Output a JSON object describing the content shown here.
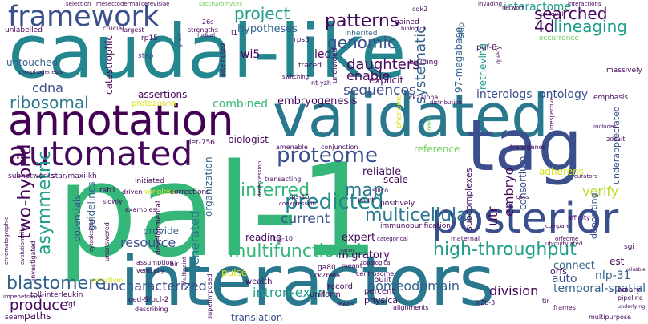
{
  "title": "word cloud",
  "palette": {
    "darkpurple": "#46085c",
    "indigo": "#3b4f8c",
    "blue": "#33638d",
    "teal": "#24868e",
    "teal2": "#1f9e89",
    "green": "#35b779",
    "lime": "#6ece58",
    "yellow": "#b5de2b",
    "gold": "#d8e219"
  },
  "words": [
    {
      "text": "caudal-like",
      "color": "#24868e"
    },
    {
      "text": "pal-1",
      "color": "#35b779"
    },
    {
      "text": "interactors",
      "color": "#2a788e"
    },
    {
      "text": "validated",
      "color": "#2a788e"
    },
    {
      "text": "tag",
      "color": "#3b4f8c"
    },
    {
      "text": "annotation",
      "color": "#440154"
    },
    {
      "text": "automated",
      "color": "#46085c"
    },
    {
      "text": "posterior",
      "color": "#3b4f8c"
    },
    {
      "text": "framework",
      "color": "#3b4f8c"
    },
    {
      "text": "predicted",
      "color": "#24868e"
    },
    {
      "text": "proteome",
      "color": "#3b4f8c"
    },
    {
      "text": "two-hybrid",
      "color": "#46085c"
    },
    {
      "text": "asymmetric",
      "color": "#1f9e89"
    },
    {
      "text": "high-throughput",
      "color": "#1f9e89"
    },
    {
      "text": "multifunctional",
      "color": "#35b779"
    },
    {
      "text": "multicellular",
      "color": "#2a788e"
    },
    {
      "text": "blastomere",
      "color": "#33638d"
    },
    {
      "text": "uncharacterized",
      "color": "#3b4f8c"
    },
    {
      "text": "inferred",
      "color": "#35b779"
    },
    {
      "text": "genomic",
      "color": "#3b4f8c"
    },
    {
      "text": "patterns",
      "color": "#46085c"
    },
    {
      "text": "daughters",
      "color": "#46085c"
    },
    {
      "text": "ribosomal",
      "color": "#2a788e"
    },
    {
      "text": "map",
      "color": "#2a788e"
    },
    {
      "text": "4d",
      "color": "#46085c"
    },
    {
      "text": "lineaging",
      "color": "#1f9e89"
    },
    {
      "text": "interactome",
      "color": "#1f9e89"
    },
    {
      "text": "searched",
      "color": "#46085c"
    },
    {
      "text": "project",
      "color": "#1f9e89"
    },
    {
      "text": "sequences",
      "color": "#3b4f8c"
    },
    {
      "text": "enable",
      "color": "#46085c"
    },
    {
      "text": "systematic",
      "color": "#33638d"
    },
    {
      "text": "produce",
      "color": "#46085c"
    },
    {
      "text": "resource",
      "color": "#3b4f8c"
    },
    {
      "text": "verify",
      "color": "#b5de2b"
    },
    {
      "text": "utr",
      "color": "#46085c"
    },
    {
      "text": "embryo",
      "color": "#46085c"
    },
    {
      "text": "current",
      "color": "#3b4f8c"
    },
    {
      "text": "generated",
      "color": "#2a788e"
    },
    {
      "text": "intron-exon",
      "color": "#1f9e89"
    },
    {
      "text": "homeodomain",
      "color": "#33638d"
    },
    {
      "text": "division",
      "color": "#46085c"
    },
    {
      "text": "temporal-spatial",
      "color": "#33638d"
    },
    {
      "text": "translation",
      "color": "#3b4f8c"
    },
    {
      "text": "interologs",
      "color": "#3b4f8c"
    },
    {
      "text": "ontology",
      "color": "#3b4f8c"
    },
    {
      "text": "combined",
      "color": "#35b779"
    },
    {
      "text": "embryogenesis",
      "color": "#46085c"
    },
    {
      "text": "cdna",
      "color": "#3b4f8c"
    },
    {
      "text": "hypotheses",
      "color": "#33638d"
    },
    {
      "text": "wi5",
      "color": "#46085c"
    },
    {
      "text": "led",
      "color": "#46085c"
    },
    {
      "text": "untouched",
      "color": "#33638d"
    },
    {
      "text": "catastrophic",
      "color": "#46085c"
    },
    {
      "text": "assertions",
      "color": "#46085c"
    },
    {
      "text": "potentials",
      "color": "#3b4f8c"
    },
    {
      "text": "guidelines",
      "color": "#33638d"
    },
    {
      "text": "organization",
      "color": "#33638d"
    },
    {
      "text": "reliable",
      "color": "#46085c"
    },
    {
      "text": "expert",
      "color": "#46085c"
    },
    {
      "text": "migratory",
      "color": "#46085c"
    },
    {
      "text": "explicit",
      "color": "#46085c"
    },
    {
      "text": "97-megabase",
      "color": "#33638d"
    },
    {
      "text": "retrieving",
      "color": "#1f9e89"
    },
    {
      "text": "consortium",
      "color": "#3b4f8c"
    },
    {
      "text": "depositing",
      "color": "#3b4f8c"
    },
    {
      "text": "underappreciated",
      "color": "#3b4f8c"
    },
    {
      "text": "subcomplexes",
      "color": "#46085c"
    },
    {
      "text": "adherens",
      "color": "#d8e219"
    },
    {
      "text": "auto",
      "color": "#3b4f8c"
    },
    {
      "text": "nlp-31",
      "color": "#33638d"
    },
    {
      "text": "connect",
      "color": "#33638d"
    },
    {
      "text": "orfs",
      "color": "#46085c"
    },
    {
      "text": "est",
      "color": "#46085c"
    },
    {
      "text": "pulse",
      "color": "#d8e219"
    },
    {
      "text": "biologist",
      "color": "#46085c"
    },
    {
      "text": "reading",
      "color": "#46085c"
    },
    {
      "text": "reference",
      "color": "#6ece58"
    },
    {
      "text": "scale",
      "color": "#46085c"
    },
    {
      "text": "provide",
      "color": "#33638d"
    },
    {
      "text": "paths",
      "color": "#46085c"
    },
    {
      "text": "uniform",
      "color": "#46085c"
    },
    {
      "text": "physical",
      "color": "#46085c"
    },
    {
      "text": "percent",
      "color": "#46085c"
    },
    {
      "text": "built",
      "color": "#46085c"
    },
    {
      "text": "record",
      "color": "#46085c"
    },
    {
      "text": "wealth",
      "color": "#46085c"
    },
    {
      "text": "selection",
      "color": "#46085c"
    },
    {
      "text": "mesectodermal",
      "color": "#46085c"
    },
    {
      "text": "cerevisiae",
      "color": "#46085c"
    },
    {
      "text": "invading",
      "color": "#46085c"
    },
    {
      "text": "network",
      "color": "#46085c"
    },
    {
      "text": "interactions",
      "color": "#46085c"
    },
    {
      "text": "saccharomyces",
      "color": "#6ece58"
    },
    {
      "text": "unlabelled",
      "color": "#46085c"
    },
    {
      "text": "crucial",
      "color": "#46085c"
    },
    {
      "text": "largest",
      "color": "#46085c"
    },
    {
      "text": "strengths",
      "color": "#46085c"
    },
    {
      "text": "rp15",
      "color": "#46085c"
    },
    {
      "text": "rps3",
      "color": "#46085c"
    },
    {
      "text": "l1",
      "color": "#46085c"
    },
    {
      "text": "grew",
      "color": "#33638d"
    },
    {
      "text": "gained",
      "color": "#46085c"
    },
    {
      "text": "biological",
      "color": "#46085c"
    },
    {
      "text": "inherited",
      "color": "#33638d"
    },
    {
      "text": "skip",
      "color": "#33638d"
    },
    {
      "text": "puf-8",
      "color": "#46085c"
    },
    {
      "text": "cdk2",
      "color": "#46085c"
    },
    {
      "text": "unequal",
      "color": "#46085c"
    },
    {
      "text": "occurrence",
      "color": "#6ece58"
    },
    {
      "text": "morphogenesis",
      "color": "#46085c"
    },
    {
      "text": "step",
      "color": "#3b4f8c"
    },
    {
      "text": "traced",
      "color": "#46085c"
    },
    {
      "text": "building",
      "color": "#46085c"
    },
    {
      "text": "switching",
      "color": "#46085c"
    },
    {
      "text": "query",
      "color": "#46085c"
    },
    {
      "text": "massively",
      "color": "#46085c"
    },
    {
      "text": "emphasis",
      "color": "#46085c"
    },
    {
      "text": "protozoans",
      "color": "#d8e219"
    },
    {
      "text": "let-756",
      "color": "#46085c"
    },
    {
      "text": "star/maxi-kh",
      "color": "#46085c"
    },
    {
      "text": "subnetworks",
      "color": "#46085c"
    },
    {
      "text": "initiated",
      "color": "#46085c"
    },
    {
      "text": "ck2alpha",
      "color": "#46085c"
    },
    {
      "text": "distribution",
      "color": "#46085c"
    },
    {
      "text": "phenome",
      "color": "#d8e219"
    },
    {
      "text": "trees",
      "color": "#6ece58"
    },
    {
      "text": "irrespective",
      "color": "#46085c"
    },
    {
      "text": "includes",
      "color": "#46085c"
    },
    {
      "text": "transgenes",
      "color": "#46085c"
    },
    {
      "text": "bait",
      "color": "#46085c"
    },
    {
      "text": "curators",
      "color": "#46085c"
    },
    {
      "text": "amenable",
      "color": "#46085c"
    },
    {
      "text": "conjunction",
      "color": "#46085c"
    },
    {
      "text": "rab1",
      "color": "#46085c"
    },
    {
      "text": "driven",
      "color": "#46085c"
    },
    {
      "text": "wingless",
      "color": "#d8e219"
    },
    {
      "text": "corrections",
      "color": "#46085c"
    },
    {
      "text": "slowly",
      "color": "#46085c"
    },
    {
      "text": "transacting",
      "color": "#46085c"
    },
    {
      "text": "positively",
      "color": "#46085c"
    },
    {
      "text": "paint",
      "color": "#46085c"
    },
    {
      "text": "silico",
      "color": "#46085c"
    },
    {
      "text": "rps-16",
      "color": "#46085c"
    },
    {
      "text": "coexpression",
      "color": "#46085c"
    },
    {
      "text": "immunopurification",
      "color": "#46085c"
    },
    {
      "text": "compare",
      "color": "#46085c"
    },
    {
      "text": "maternal",
      "color": "#46085c"
    },
    {
      "text": "orfeome",
      "color": "#46085c"
    },
    {
      "text": "ubiquitylated",
      "color": "#46085c"
    },
    {
      "text": "sgi",
      "color": "#46085c"
    },
    {
      "text": "kin-10",
      "color": "#46085c"
    },
    {
      "text": "meant",
      "color": "#46085c"
    },
    {
      "text": "topological",
      "color": "#46085c"
    },
    {
      "text": "centrosome",
      "color": "#46085c"
    },
    {
      "text": "ga80",
      "color": "#46085c"
    },
    {
      "text": "ck2beta",
      "color": "#46085c"
    },
    {
      "text": "meds",
      "color": "#46085c"
    },
    {
      "text": "alignments",
      "color": "#46085c"
    },
    {
      "text": "h2b-3",
      "color": "#46085c"
    },
    {
      "text": "frames",
      "color": "#46085c"
    },
    {
      "text": "tir",
      "color": "#46085c"
    },
    {
      "text": "binary",
      "color": "#46085c"
    },
    {
      "text": "pipeline",
      "color": "#46085c"
    },
    {
      "text": "valuable",
      "color": "#46085c"
    },
    {
      "text": "underlying",
      "color": "#46085c"
    },
    {
      "text": "multipurpose",
      "color": "#46085c"
    },
    {
      "text": "examples",
      "color": "#46085c"
    },
    {
      "text": "cytoskeletal",
      "color": "#46085c"
    },
    {
      "text": "unanswered",
      "color": "#46085c"
    },
    {
      "text": "developmental",
      "color": "#46085c"
    },
    {
      "text": "assumption",
      "color": "#46085c"
    },
    {
      "text": "ventrally",
      "color": "#46085c"
    },
    {
      "text": "ced-9/bcl-2",
      "color": "#46085c"
    },
    {
      "text": "describing",
      "color": "#46085c"
    },
    {
      "text": "bir",
      "color": "#46085c"
    },
    {
      "text": "syncytium",
      "color": "#d8e219"
    },
    {
      "text": "toll-interleukin",
      "color": "#46085c"
    },
    {
      "text": "fgf",
      "color": "#46085c"
    },
    {
      "text": "investigated",
      "color": "#46085c"
    },
    {
      "text": "evolutionarily",
      "color": "#46085c"
    },
    {
      "text": "chromatographic",
      "color": "#46085c"
    },
    {
      "text": "impenetrance",
      "color": "#46085c"
    },
    {
      "text": "seam",
      "color": "#46085c"
    },
    {
      "text": "superimposed",
      "color": "#46085c"
    },
    {
      "text": "derepression",
      "color": "#46085c"
    },
    {
      "text": "undivided",
      "color": "#46085c"
    },
    {
      "text": "attempted",
      "color": "#46085c"
    },
    {
      "text": "26s",
      "color": "#46085c"
    },
    {
      "text": "fungal",
      "color": "#46085c"
    },
    {
      "text": "nt-yzh",
      "color": "#46085c"
    },
    {
      "text": "sarm",
      "color": "#46085c"
    },
    {
      "text": "20s",
      "color": "#46085c"
    },
    {
      "text": "gscs",
      "color": "#46085c"
    },
    {
      "text": "categorical",
      "color": "#46085c"
    },
    {
      "text": "affinity",
      "color": "#46085c"
    },
    {
      "text": "multipoint",
      "color": "#46085c"
    }
  ]
}
